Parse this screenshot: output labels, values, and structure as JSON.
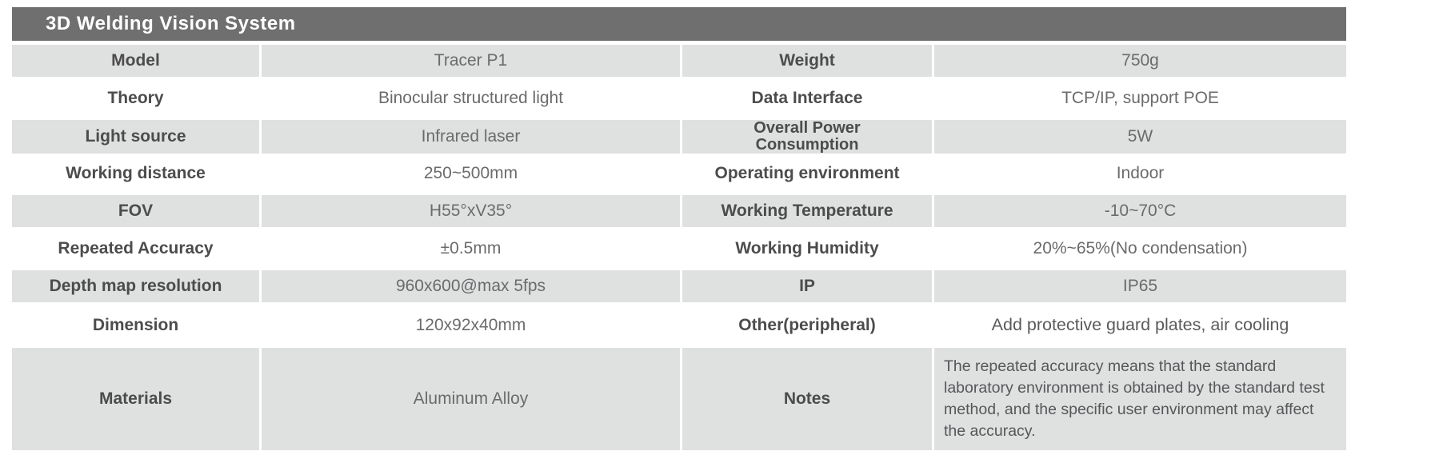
{
  "title": "3D Welding Vision System",
  "colors": {
    "header_bg": "#6f6f6f",
    "header_text": "#ffffff",
    "row_stripe": "#dfe0e0",
    "label_text": "#4c4c4d",
    "value_text": "#6b6b6d"
  },
  "specs": {
    "rows": [
      {
        "label1": "Model",
        "value1": "Tracer P1",
        "label2": "Weight",
        "value2": "750g"
      },
      {
        "label1": "Theory",
        "value1": "Binocular structured light",
        "label2": "Data Interface",
        "value2": "TCP/IP, support POE"
      },
      {
        "label1": "Light source",
        "value1": "Infrared laser",
        "label2": "Overall Power Consumption",
        "value2": "5W"
      },
      {
        "label1": "Working distance",
        "value1": "250~500mm",
        "label2": "Operating environment",
        "value2": "Indoor"
      },
      {
        "label1": "FOV",
        "value1": "H55°xV35°",
        "label2": "Working Temperature",
        "value2": "-10~70°C"
      },
      {
        "label1": "Repeated Accuracy",
        "value1": "±0.5mm",
        "label2": "Working Humidity",
        "value2": "20%~65%(No condensation)"
      },
      {
        "label1": "Depth map resolution",
        "value1": "960x600@max 5fps",
        "label2": "IP",
        "value2": "IP65"
      },
      {
        "label1": "Dimension",
        "value1": "120x92x40mm",
        "label2": "Other(peripheral)",
        "value2": "Add protective guard plates, air cooling"
      },
      {
        "label1": "Materials",
        "value1": "Aluminum Alloy",
        "label2": "Notes",
        "value2": "The repeated accuracy means that the standard laboratory environment is obtained by the standard test method, and the specific user environment may affect the accuracy."
      }
    ]
  }
}
